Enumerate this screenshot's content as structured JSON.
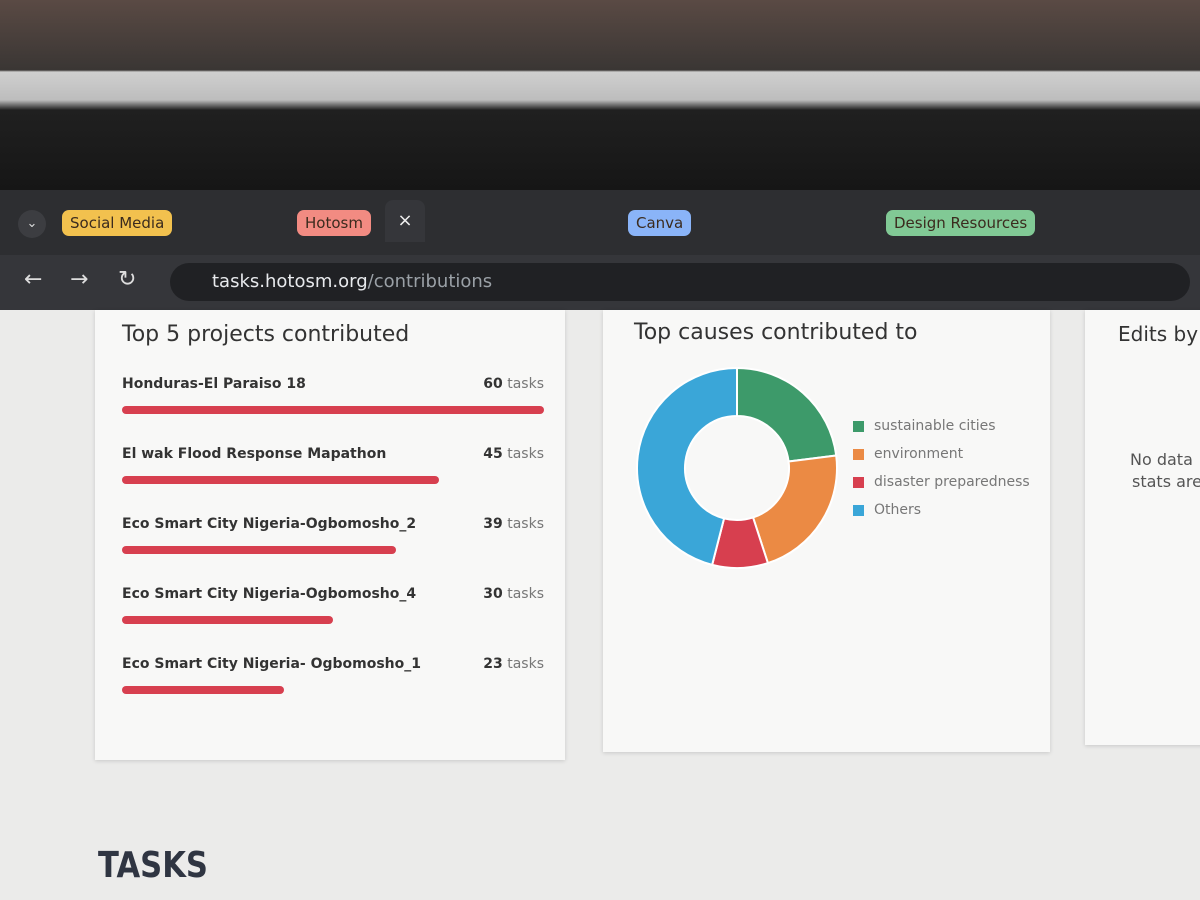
{
  "browser": {
    "tabs": [
      {
        "label": "Social Media",
        "color": "#f2c14e"
      },
      {
        "label": "Hotosm",
        "color": "#f28b82"
      },
      {
        "label": "Canva",
        "color": "#8ab4f8"
      },
      {
        "label": "Design Resources",
        "color": "#81c995"
      }
    ],
    "address": {
      "host": "tasks.hotosm.org",
      "path": "/contributions"
    }
  },
  "projects_card": {
    "title": "Top 5 projects contributed",
    "unit": "tasks",
    "bar_color": "#d73f4f",
    "projects": [
      {
        "name": "Honduras-El Paraiso 18",
        "count": 60
      },
      {
        "name": "El wak Flood Response Mapathon",
        "count": 45
      },
      {
        "name": "Eco Smart City Nigeria-Ogbomosho_2",
        "count": 39
      },
      {
        "name": "Eco Smart City Nigeria-Ogbomosho_4",
        "count": 30
      },
      {
        "name": "Eco Smart City Nigeria- Ogbomosho_1",
        "count": 23
      }
    ]
  },
  "causes_card": {
    "title": "Top causes contributed to",
    "type": "donut",
    "categories": [
      "sustainable cities",
      "environment",
      "disaster preparedness",
      "Others"
    ],
    "values": [
      23,
      22,
      9,
      46
    ],
    "colors": [
      "#3d9a6a",
      "#eb8a44",
      "#d73f4f",
      "#3aa6d8"
    ]
  },
  "edits_card": {
    "title": "Edits by",
    "message": [
      "No data",
      "stats are"
    ]
  },
  "section_title": "TASKS"
}
